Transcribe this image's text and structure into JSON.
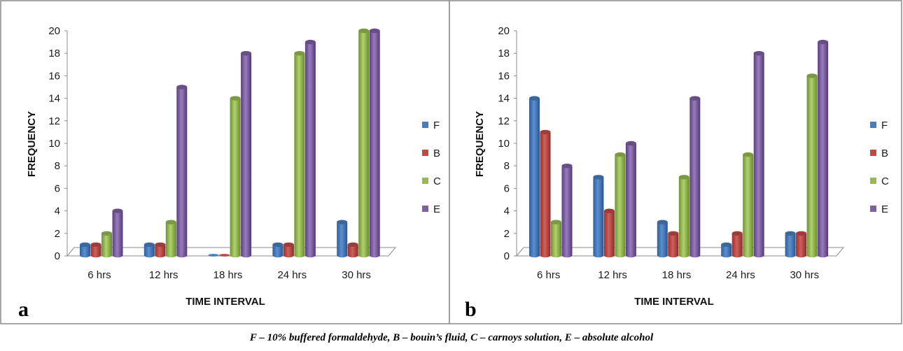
{
  "caption": "F – 10% buffered formaldehyde, B – bouin’s fluid, C – carnoys solution, E – absolute alcohol",
  "colors": {
    "F": "#4a7ebb",
    "B": "#be4b48",
    "C": "#98b954",
    "E": "#7d60a0"
  },
  "chart_data": [
    {
      "type": "bar",
      "panel_label": "a",
      "title": "",
      "xlabel": "TIME INTERVAL",
      "ylabel": "FREQUENCY",
      "ylim": [
        0,
        20
      ],
      "yticks": [
        "0",
        "2",
        "4",
        "6",
        "8",
        "10",
        "12",
        "14",
        "16",
        "18",
        "20"
      ],
      "categories": [
        "6 hrs",
        "12 hrs",
        "18 hrs",
        "24 hrs",
        "30 hrs"
      ],
      "series": [
        {
          "name": "F",
          "values": [
            1,
            1,
            0,
            1,
            3
          ]
        },
        {
          "name": "B",
          "values": [
            1,
            1,
            0,
            1,
            1
          ]
        },
        {
          "name": "C",
          "values": [
            2,
            3,
            14,
            18,
            20
          ]
        },
        {
          "name": "E",
          "values": [
            4,
            15,
            18,
            19,
            20
          ]
        }
      ],
      "legend_position": "right"
    },
    {
      "type": "bar",
      "panel_label": "b",
      "title": "",
      "xlabel": "TIME INTERVAL",
      "ylabel": "FREQUENCY",
      "ylim": [
        0,
        20
      ],
      "yticks": [
        "0",
        "2",
        "4",
        "6",
        "8",
        "10",
        "12",
        "14",
        "16",
        "18",
        "20"
      ],
      "categories": [
        "6 hrs",
        "12 hrs",
        "18 hrs",
        "24 hrs",
        "30 hrs"
      ],
      "series": [
        {
          "name": "F",
          "values": [
            14,
            7,
            3,
            1,
            2
          ]
        },
        {
          "name": "B",
          "values": [
            11,
            4,
            2,
            2,
            2
          ]
        },
        {
          "name": "C",
          "values": [
            3,
            9,
            7,
            9,
            16
          ]
        },
        {
          "name": "E",
          "values": [
            8,
            10,
            14,
            18,
            19
          ]
        }
      ],
      "legend_position": "right"
    }
  ]
}
